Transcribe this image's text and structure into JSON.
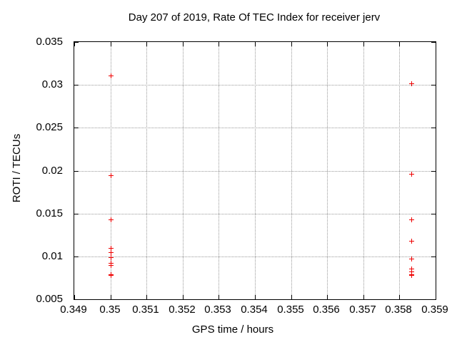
{
  "window": {
    "background": "#ffffff"
  },
  "colors": {
    "marker": "#ee0000",
    "grid": "#999999",
    "border": "#000000",
    "text": "#000000"
  },
  "chart_data": {
    "type": "scatter",
    "title": "Day 207 of 2019, Rate Of TEC Index for receiver jerv",
    "xlabel": "GPS time / hours",
    "ylabel": "ROTI / TECUs",
    "xlim": [
      0.349,
      0.359
    ],
    "ylim": [
      0.005,
      0.035
    ],
    "xtick_labels": [
      "0.349",
      "0.35",
      "0.351",
      "0.352",
      "0.353",
      "0.354",
      "0.355",
      "0.356",
      "0.357",
      "0.358",
      "0.359"
    ],
    "ytick_labels": [
      "0.005",
      "0.01",
      "0.015",
      "0.02",
      "0.025",
      "0.03",
      "0.035"
    ],
    "grid": true,
    "legend_position": "none",
    "marker_shape": "plus",
    "marker_color": "#ee0000",
    "series": [
      {
        "name": "ROTI",
        "color": "#ee0000",
        "points": [
          [
            0.35,
            0.0311
          ],
          [
            0.35,
            0.0195
          ],
          [
            0.35,
            0.0143
          ],
          [
            0.35,
            0.011
          ],
          [
            0.35,
            0.0105
          ],
          [
            0.35,
            0.0099
          ],
          [
            0.35,
            0.0092
          ],
          [
            0.35,
            0.009
          ],
          [
            0.35,
            0.0079
          ],
          [
            0.35,
            0.0078
          ],
          [
            0.35833,
            0.0302
          ],
          [
            0.35833,
            0.0196
          ],
          [
            0.35833,
            0.0143
          ],
          [
            0.35833,
            0.0118
          ],
          [
            0.35833,
            0.0097
          ],
          [
            0.35833,
            0.0086
          ],
          [
            0.35833,
            0.0082
          ],
          [
            0.35833,
            0.0079
          ],
          [
            0.35833,
            0.0078
          ]
        ]
      }
    ]
  }
}
